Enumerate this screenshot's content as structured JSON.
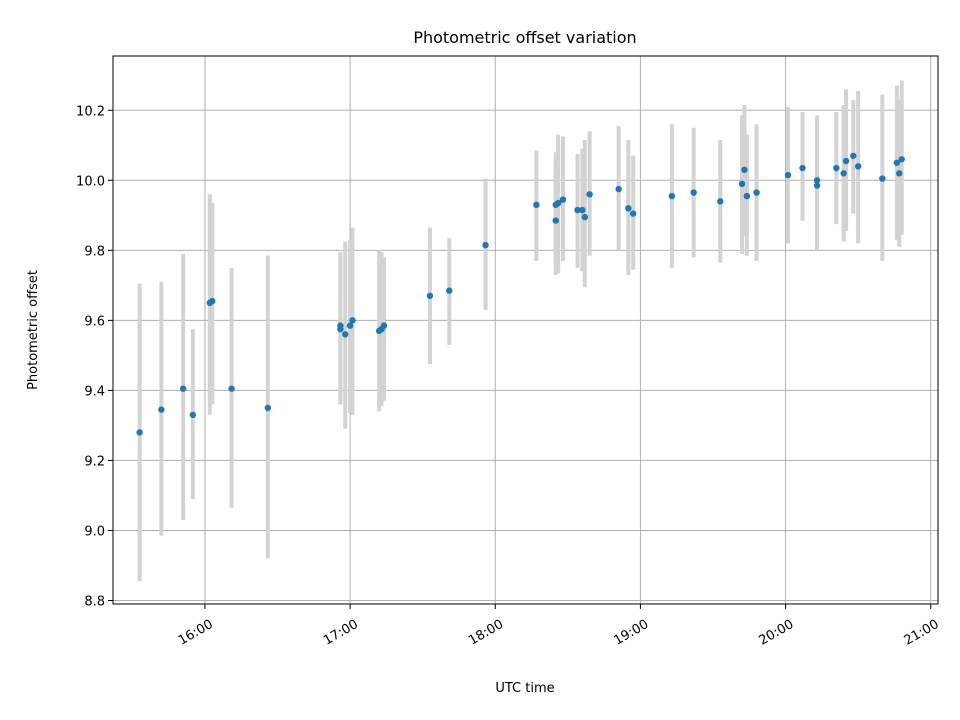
{
  "chart_data": {
    "type": "scatter",
    "title": "Photometric offset variation",
    "xlabel": "UTC time",
    "ylabel": "Photometric offset",
    "xlim": [
      "15:22",
      "21:03"
    ],
    "ylim": [
      8.79,
      10.355
    ],
    "x_ticks": [
      "16:00",
      "17:00",
      "18:00",
      "19:00",
      "20:00",
      "21:00"
    ],
    "y_ticks": [
      8.8,
      9.0,
      9.2,
      9.4,
      9.6,
      9.8,
      10.0,
      10.2
    ],
    "grid": true,
    "colors": {
      "point": "#1f77b4",
      "errorbar": "#d3d3d3"
    },
    "points": [
      {
        "x": "15:33",
        "y": 9.28,
        "ylo": 8.855,
        "yhi": 9.705
      },
      {
        "x": "15:42",
        "y": 9.345,
        "ylo": 8.985,
        "yhi": 9.71
      },
      {
        "x": "15:51",
        "y": 9.405,
        "ylo": 9.03,
        "yhi": 9.79
      },
      {
        "x": "15:55",
        "y": 9.33,
        "ylo": 9.09,
        "yhi": 9.575
      },
      {
        "x": "16:02",
        "y": 9.65,
        "ylo": 9.33,
        "yhi": 9.96
      },
      {
        "x": "16:03",
        "y": 9.655,
        "ylo": 9.36,
        "yhi": 9.935
      },
      {
        "x": "16:11",
        "y": 9.405,
        "ylo": 9.065,
        "yhi": 9.75
      },
      {
        "x": "16:26",
        "y": 9.35,
        "ylo": 8.92,
        "yhi": 9.785
      },
      {
        "x": "16:56",
        "y": 9.575,
        "ylo": 9.36,
        "yhi": 9.795
      },
      {
        "x": "16:56",
        "y": 9.585,
        "ylo": 9.39,
        "yhi": 9.78
      },
      {
        "x": "16:58",
        "y": 9.56,
        "ylo": 9.29,
        "yhi": 9.825
      },
      {
        "x": "17:00",
        "y": 9.585,
        "ylo": 9.335,
        "yhi": 9.83
      },
      {
        "x": "17:01",
        "y": 9.6,
        "ylo": 9.33,
        "yhi": 9.865
      },
      {
        "x": "17:12",
        "y": 9.57,
        "ylo": 9.34,
        "yhi": 9.8
      },
      {
        "x": "17:13",
        "y": 9.575,
        "ylo": 9.355,
        "yhi": 9.795
      },
      {
        "x": "17:14",
        "y": 9.585,
        "ylo": 9.37,
        "yhi": 9.78
      },
      {
        "x": "17:33",
        "y": 9.67,
        "ylo": 9.475,
        "yhi": 9.865
      },
      {
        "x": "17:41",
        "y": 9.685,
        "ylo": 9.53,
        "yhi": 9.835
      },
      {
        "x": "17:56",
        "y": 9.815,
        "ylo": 9.63,
        "yhi": 10.005
      },
      {
        "x": "18:17",
        "y": 9.93,
        "ylo": 9.77,
        "yhi": 10.085
      },
      {
        "x": "18:25",
        "y": 9.885,
        "ylo": 9.73,
        "yhi": 10.04
      },
      {
        "x": "18:25",
        "y": 9.93,
        "ylo": 9.765,
        "yhi": 10.08
      },
      {
        "x": "18:26",
        "y": 9.935,
        "ylo": 9.735,
        "yhi": 10.13
      },
      {
        "x": "18:28",
        "y": 9.945,
        "ylo": 9.77,
        "yhi": 10.125
      },
      {
        "x": "18:34",
        "y": 9.915,
        "ylo": 9.75,
        "yhi": 10.075
      },
      {
        "x": "18:36",
        "y": 9.915,
        "ylo": 9.74,
        "yhi": 10.09
      },
      {
        "x": "18:37",
        "y": 9.895,
        "ylo": 9.695,
        "yhi": 10.115
      },
      {
        "x": "18:39",
        "y": 9.96,
        "ylo": 9.785,
        "yhi": 10.14
      },
      {
        "x": "18:51",
        "y": 9.975,
        "ylo": 9.8,
        "yhi": 10.155
      },
      {
        "x": "18:55",
        "y": 9.92,
        "ylo": 9.73,
        "yhi": 10.115
      },
      {
        "x": "18:57",
        "y": 9.905,
        "ylo": 9.745,
        "yhi": 10.07
      },
      {
        "x": "19:13",
        "y": 9.955,
        "ylo": 9.75,
        "yhi": 10.16
      },
      {
        "x": "19:22",
        "y": 9.965,
        "ylo": 9.78,
        "yhi": 10.15
      },
      {
        "x": "19:33",
        "y": 9.94,
        "ylo": 9.765,
        "yhi": 10.115
      },
      {
        "x": "19:42",
        "y": 9.99,
        "ylo": 9.79,
        "yhi": 10.185
      },
      {
        "x": "19:43",
        "y": 10.03,
        "ylo": 9.84,
        "yhi": 10.215
      },
      {
        "x": "19:44",
        "y": 9.955,
        "ylo": 9.785,
        "yhi": 10.13
      },
      {
        "x": "19:48",
        "y": 9.965,
        "ylo": 9.77,
        "yhi": 10.16
      },
      {
        "x": "20:01",
        "y": 10.015,
        "ylo": 9.82,
        "yhi": 10.21
      },
      {
        "x": "20:07",
        "y": 10.035,
        "ylo": 9.885,
        "yhi": 10.195
      },
      {
        "x": "20:13",
        "y": 9.985,
        "ylo": 9.8,
        "yhi": 10.165
      },
      {
        "x": "20:13",
        "y": 10.0,
        "ylo": 9.815,
        "yhi": 10.185
      },
      {
        "x": "20:21",
        "y": 10.035,
        "ylo": 9.875,
        "yhi": 10.195
      },
      {
        "x": "20:24",
        "y": 10.02,
        "ylo": 9.825,
        "yhi": 10.215
      },
      {
        "x": "20:25",
        "y": 10.055,
        "ylo": 9.855,
        "yhi": 10.26
      },
      {
        "x": "20:28",
        "y": 10.07,
        "ylo": 9.905,
        "yhi": 10.23
      },
      {
        "x": "20:30",
        "y": 10.04,
        "ylo": 9.82,
        "yhi": 10.255
      },
      {
        "x": "20:40",
        "y": 10.005,
        "ylo": 9.77,
        "yhi": 10.245
      },
      {
        "x": "20:46",
        "y": 10.05,
        "ylo": 9.83,
        "yhi": 10.27
      },
      {
        "x": "20:47",
        "y": 10.02,
        "ylo": 9.81,
        "yhi": 10.23
      },
      {
        "x": "20:48",
        "y": 10.06,
        "ylo": 9.845,
        "yhi": 10.285
      }
    ]
  }
}
